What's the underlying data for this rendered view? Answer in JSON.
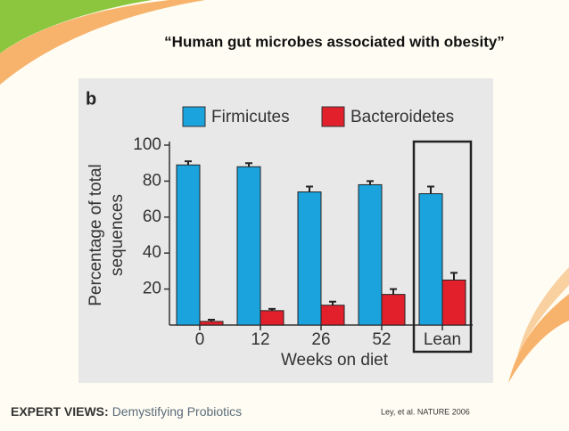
{
  "slide": {
    "title": "“Human gut microbes associated with obesity”",
    "footer_brand": "EXPERT VIEWS:",
    "footer_subtitle": "Demystifying Probiotics",
    "citation": "Ley, et al. NATURE 2006"
  },
  "chart_data": {
    "type": "bar",
    "panel_label": "b",
    "categories": [
      "0",
      "12",
      "26",
      "52",
      "Lean"
    ],
    "series": [
      {
        "name": "Firmicutes",
        "color": "#1aa3dd",
        "values": [
          89,
          88,
          74,
          78,
          73
        ],
        "errors": [
          2,
          2,
          3,
          2,
          4
        ]
      },
      {
        "name": "Bacteroidetes",
        "color": "#e2202b",
        "values": [
          2,
          8,
          11,
          17,
          25
        ],
        "errors": [
          1,
          1,
          2,
          3,
          4
        ]
      }
    ],
    "xlabel": "Weeks on diet",
    "ylabel": [
      "Percentage of total",
      "sequences"
    ],
    "ylim": [
      0,
      100
    ],
    "yticks": [
      20,
      40,
      60,
      80,
      100
    ],
    "highlight": "Lean",
    "legend": "top"
  }
}
